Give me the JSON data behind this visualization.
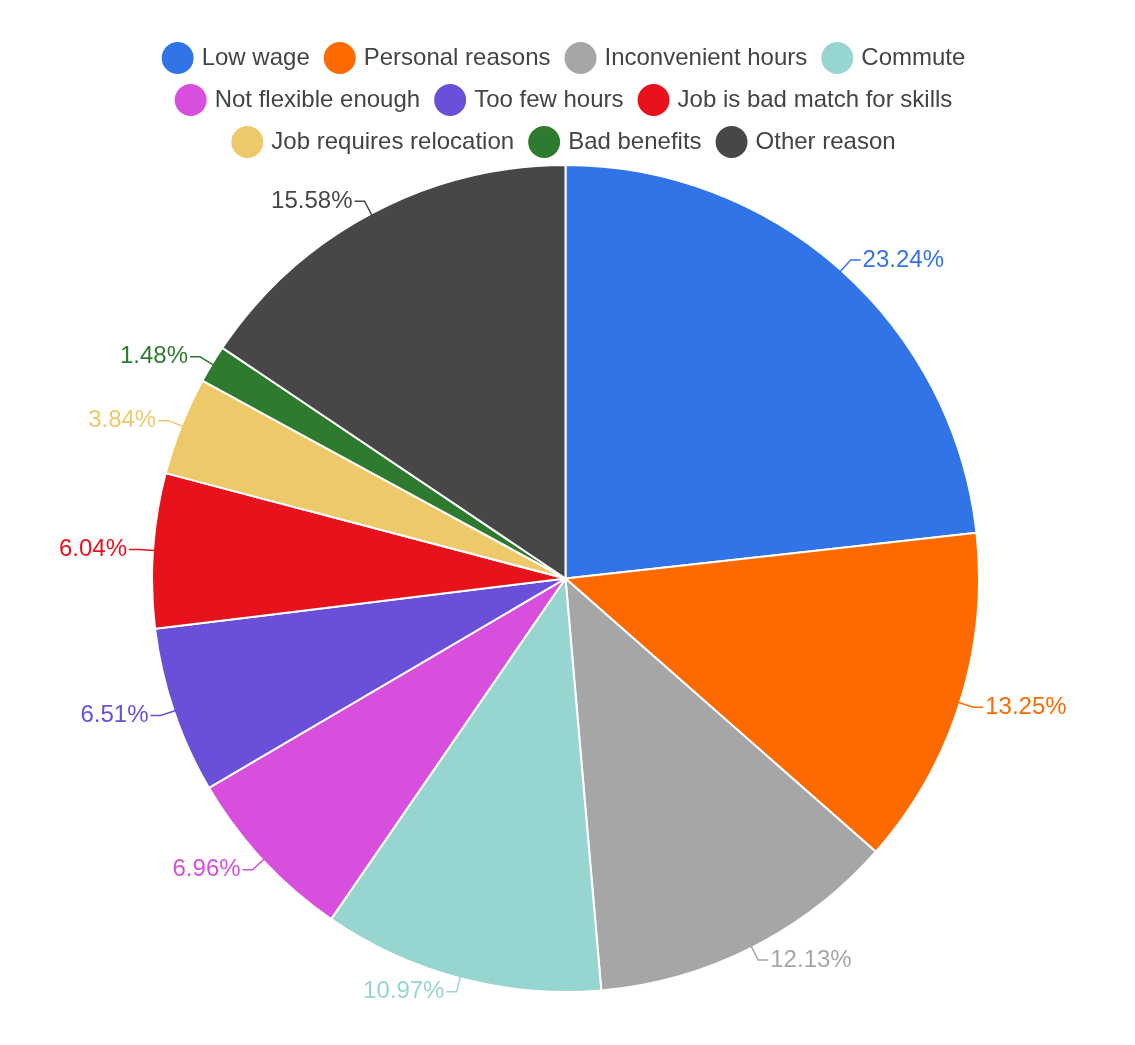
{
  "chart_data": {
    "type": "pie",
    "categories": [
      "Low wage",
      "Personal reasons",
      "Inconvenient hours",
      "Commute",
      "Not flexible enough",
      "Too few hours",
      "Job is bad match for skills",
      "Job requires relocation",
      "Bad benefits",
      "Other reason"
    ],
    "values": [
      23.24,
      13.25,
      12.13,
      10.97,
      6.96,
      6.51,
      6.04,
      3.84,
      1.48,
      15.58
    ],
    "value_labels": [
      "23.24%",
      "13.25%",
      "12.13%",
      "10.97%",
      "6.96%",
      "6.51%",
      "6.04%",
      "3.84%",
      "1.48%",
      "15.58%"
    ],
    "colors": [
      "#3174e8",
      "#ff6a00",
      "#a6a6a6",
      "#97d5d0",
      "#d84fdd",
      "#6a4fd8",
      "#e8121c",
      "#edc96a",
      "#2e7a2e",
      "#474747"
    ],
    "legend": "top"
  }
}
